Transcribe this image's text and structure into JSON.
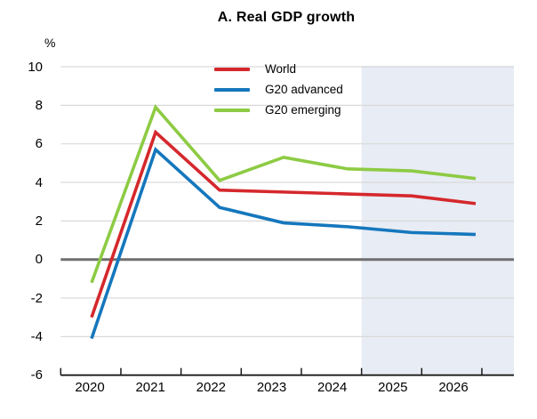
{
  "title": "A. Real GDP growth",
  "y_axis_unit": "%",
  "legend": {
    "items": [
      "World",
      "G20 advanced",
      "G20 emerging"
    ]
  },
  "colors": {
    "world": "#d5282c",
    "g20_advanced": "#1577bd",
    "g20_emerging": "#8dcb44",
    "forecast_shading": "#e8ecf4",
    "gridline": "#d9d9d9",
    "zero_line": "#6f6f6f",
    "axis": "#1a1a1a"
  },
  "chart_data": {
    "type": "line",
    "title": "A. Real GDP growth",
    "xlabel": "",
    "ylabel": "%",
    "categories": [
      "2020",
      "2021",
      "2022",
      "2023",
      "2024",
      "2025",
      "2026"
    ],
    "series": [
      {
        "name": "World",
        "color": "#d5282c",
        "values": [
          -3.0,
          6.6,
          3.6,
          3.5,
          3.4,
          3.3,
          2.9
        ]
      },
      {
        "name": "G20 advanced",
        "color": "#1577bd",
        "values": [
          -4.1,
          5.7,
          2.7,
          1.9,
          1.7,
          1.4,
          1.3
        ]
      },
      {
        "name": "G20 emerging",
        "color": "#8dcb44",
        "values": [
          -1.2,
          7.9,
          4.1,
          5.3,
          4.7,
          4.6,
          4.2
        ]
      }
    ],
    "ylim": [
      -6,
      10
    ],
    "yticks": [
      10,
      8,
      6,
      4,
      2,
      0,
      -2,
      -4,
      -6
    ],
    "grid": true,
    "zero_line": true,
    "legend_position": "inside-top-center",
    "forecast_shading": {
      "start_category": "2025",
      "end": "right-edge",
      "note": "shaded band covers 2025-2026 forecast period"
    }
  }
}
